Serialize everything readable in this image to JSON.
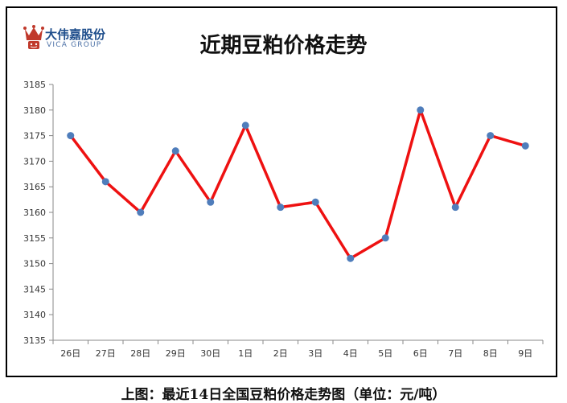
{
  "logo": {
    "name_cn": "大伟嘉股份",
    "name_en": "VICA GROUP",
    "brand_color": "#1f4e8c",
    "crown_color": "#c0392b"
  },
  "caption": "上图：最近14日全国豆粕价格走势图（单位：元/吨）",
  "chart_data": {
    "type": "line",
    "title": "近期豆粕价格走势",
    "xlabel": "",
    "ylabel": "",
    "categories": [
      "26日",
      "27日",
      "28日",
      "29日",
      "30日",
      "1日",
      "2日",
      "3日",
      "4日",
      "5日",
      "6日",
      "7日",
      "8日",
      "9日"
    ],
    "series": [
      {
        "values": [
          3175,
          3166,
          3160,
          3172,
          3162,
          3177,
          3161,
          3162,
          3151,
          3155,
          3180,
          3161,
          3175,
          3173
        ],
        "line_color": "#ee1111",
        "marker_color": "#4f7dbb"
      }
    ],
    "ylim": [
      3135,
      3185
    ],
    "yticks": [
      3135,
      3140,
      3145,
      3150,
      3155,
      3160,
      3165,
      3170,
      3175,
      3180,
      3185
    ],
    "grid": false,
    "legend": "none"
  }
}
